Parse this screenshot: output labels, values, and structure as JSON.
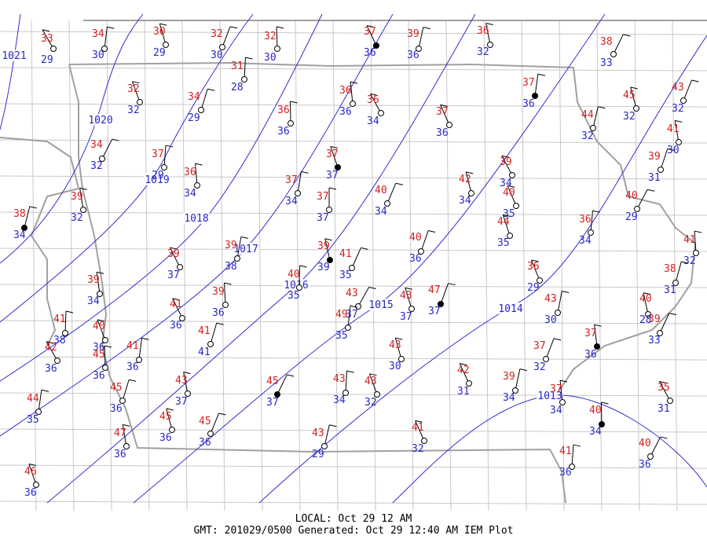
{
  "stations": [
    {
      "temp": 33,
      "dew": 29
    },
    {
      "temp": 34,
      "dew": 30
    },
    {
      "temp": 30,
      "dew": 29
    },
    {
      "temp": 32,
      "dew": 30
    },
    {
      "temp": 32,
      "dew": 30
    },
    {
      "temp": 37,
      "dew": 36
    },
    {
      "temp": 39,
      "dew": 36
    },
    {
      "temp": 36,
      "dew": 32
    },
    {
      "temp": 38,
      "dew": 33
    },
    {
      "temp": 31,
      "dew": 28
    },
    {
      "temp": 32,
      "dew": 32
    },
    {
      "temp": 34,
      "dew": 29
    },
    {
      "temp": 36,
      "dew": 36
    },
    {
      "temp": 36,
      "dew": 34
    },
    {
      "temp": 37,
      "dew": 36
    },
    {
      "temp": 45,
      "dew": 32
    },
    {
      "temp": 43,
      "dew": 32
    },
    {
      "temp": 36,
      "dew": 36
    },
    {
      "temp": 37,
      "dew": 36
    },
    {
      "temp": 44,
      "dew": 32
    },
    {
      "temp": 41,
      "dew": 30
    },
    {
      "temp": 34,
      "dew": 32
    },
    {
      "temp": 37,
      "dew": 29
    },
    {
      "temp": 37,
      "dew": 37
    },
    {
      "temp": 39,
      "dew": 31
    },
    {
      "temp": 36,
      "dew": 34
    },
    {
      "temp": 39,
      "dew": 34
    },
    {
      "temp": 37,
      "dew": 34
    },
    {
      "temp": 42,
      "dew": 34
    },
    {
      "temp": 40,
      "dew": 34
    },
    {
      "temp": 37,
      "dew": 37
    },
    {
      "temp": 40,
      "dew": 35
    },
    {
      "temp": 38,
      "dew": 34
    },
    {
      "temp": 39,
      "dew": 32
    },
    {
      "temp": 40,
      "dew": 29
    },
    {
      "temp": 36,
      "dew": 34
    },
    {
      "temp": 44,
      "dew": 35
    },
    {
      "temp": 40,
      "dew": 36
    },
    {
      "temp": 41,
      "dew": 32
    },
    {
      "temp": 39,
      "dew": 37
    },
    {
      "temp": 39,
      "dew": 38
    },
    {
      "temp": 39,
      "dew": 39
    },
    {
      "temp": 41,
      "dew": 35
    },
    {
      "temp": 40,
      "dew": 35
    },
    {
      "temp": 36,
      "dew": 29
    },
    {
      "temp": 38,
      "dew": 31
    },
    {
      "temp": 39,
      "dew": 34
    },
    {
      "temp": 43,
      "dew": 37
    },
    {
      "temp": 49,
      "dew": 35
    },
    {
      "temp": 43,
      "dew": 37
    },
    {
      "temp": 47,
      "dew": 37
    },
    {
      "temp": 39,
      "dew": 36
    },
    {
      "temp": 41,
      "dew": 36
    },
    {
      "temp": 43,
      "dew": 30
    },
    {
      "temp": 40,
      "dew": 28
    },
    {
      "temp": 39,
      "dew": 33
    },
    {
      "temp": 41,
      "dew": 38
    },
    {
      "temp": 40,
      "dew": 36
    },
    {
      "temp": 41,
      "dew": 41
    },
    {
      "temp": 37,
      "dew": 36
    },
    {
      "temp": 42,
      "dew": 36
    },
    {
      "temp": 41,
      "dew": 36
    },
    {
      "temp": 43,
      "dew": 30
    },
    {
      "temp": 37,
      "dew": 32
    },
    {
      "temp": 45,
      "dew": 36
    },
    {
      "temp": 42,
      "dew": 31
    },
    {
      "temp": 39,
      "dew": 34
    },
    {
      "temp": 43,
      "dew": 37
    },
    {
      "temp": 45,
      "dew": 37
    },
    {
      "temp": 43,
      "dew": 34
    },
    {
      "temp": 43,
      "dew": 32
    },
    {
      "temp": 45,
      "dew": 36
    },
    {
      "temp": 37,
      "dew": 34
    },
    {
      "temp": 35,
      "dew": 31
    },
    {
      "temp": 44,
      "dew": 35
    },
    {
      "temp": 45,
      "dew": 36
    },
    {
      "temp": 45,
      "dew": 36
    },
    {
      "temp": 40,
      "dew": 34
    },
    {
      "temp": 41,
      "dew": 32
    },
    {
      "temp": 43,
      "dew": 29
    },
    {
      "temp": 47,
      "dew": 36
    },
    {
      "temp": 40,
      "dew": 36
    },
    {
      "temp": 41,
      "dew": 36
    },
    {
      "temp": 46,
      "dew": 36
    }
  ],
  "isobars": [
    "1021",
    "1020",
    "1019",
    "1018",
    "1017",
    "1016",
    "1015",
    "1014",
    "1013"
  ],
  "footer": {
    "local": "LOCAL: Oct 29 12 AM",
    "gmt": "GMT: 201029/0500 Generated: Oct 29 12:40 AM IEM Plot"
  }
}
